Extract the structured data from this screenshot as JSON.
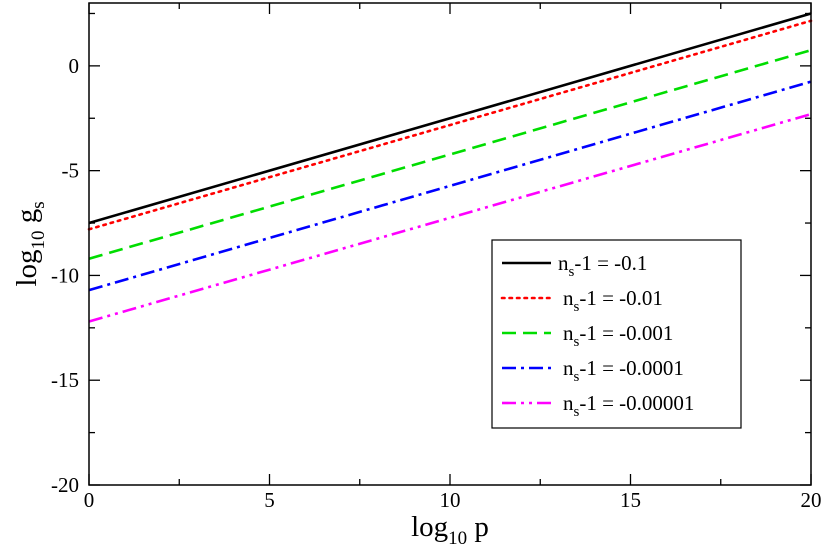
{
  "chart_data": {
    "type": "line",
    "xlabel": {
      "base": "log",
      "subscript": "10",
      "rest": " p"
    },
    "ylabel": {
      "base": "log",
      "subscript": "10",
      "rest": " g",
      "subscript2": "s"
    },
    "xlim": [
      0,
      20
    ],
    "ylim": [
      -20,
      3
    ],
    "x_ticks_major": [
      0,
      5,
      10,
      15,
      20
    ],
    "x_tick_labels": [
      "0",
      "5",
      "10",
      "15",
      "20"
    ],
    "x_ticks_minor": [
      2.5,
      7.5,
      12.5,
      17.5
    ],
    "y_ticks_major": [
      -20,
      -15,
      -10,
      -5,
      0
    ],
    "y_tick_labels": [
      "-20",
      "-15",
      "-10",
      "-5",
      "0"
    ],
    "y_ticks_minor": [
      -17.5,
      -12.5,
      -7.5,
      -2.5,
      2.5
    ],
    "grid": false,
    "legend_position": "bottom-right",
    "series": [
      {
        "name": "n_s-1 = -0.1",
        "label_pre": "n",
        "label_sub": "s",
        "label_post": "-1 = -0.1",
        "color": "#000000",
        "style": "solid",
        "x": [
          0,
          20
        ],
        "y": [
          -7.5,
          2.5
        ]
      },
      {
        "name": "n_s-1 = -0.01",
        "label_pre": "n",
        "label_sub": "s",
        "label_post": "-1 = -0.01",
        "color": "#ff0000",
        "style": "dotted",
        "x": [
          0,
          20
        ],
        "y": [
          -7.8,
          2.15
        ]
      },
      {
        "name": "n_s-1 = -0.001",
        "label_pre": "n",
        "label_sub": "s",
        "label_post": "-1 = -0.001",
        "color": "#00dd00",
        "style": "dashed",
        "x": [
          0,
          20
        ],
        "y": [
          -9.2,
          0.75
        ]
      },
      {
        "name": "n_s-1 = -0.0001",
        "label_pre": "n",
        "label_sub": "s",
        "label_post": "-1 = -0.0001",
        "color": "#0000ff",
        "style": "dashdot",
        "x": [
          0,
          20
        ],
        "y": [
          -10.7,
          -0.75
        ]
      },
      {
        "name": "n_s-1 = -0.00001",
        "label_pre": "n",
        "label_sub": "s",
        "label_post": "-1 = -0.00001",
        "color": "#ff00ff",
        "style": "dashdotdot",
        "x": [
          0,
          20
        ],
        "y": [
          -12.2,
          -2.3
        ]
      }
    ]
  }
}
